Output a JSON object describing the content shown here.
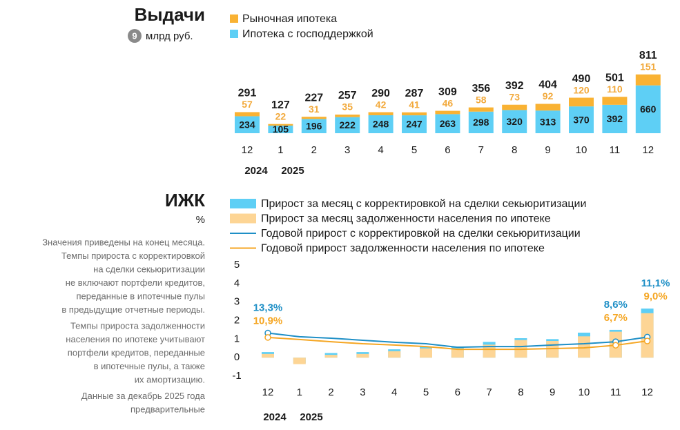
{
  "chart_data": [
    {
      "type": "stacked_bar",
      "title": "Выдачи",
      "footnote": "9",
      "unit": "млрд руб.",
      "categories": [
        "12",
        "1",
        "2",
        "3",
        "4",
        "5",
        "6",
        "7",
        "8",
        "9",
        "10",
        "11",
        "12"
      ],
      "years": [
        "2024",
        "2025"
      ],
      "series": [
        {
          "name": "Рыночная ипотека",
          "color": "#f9b233",
          "label_color": "#f2a93b",
          "values": [
            57,
            22,
            31,
            35,
            42,
            41,
            46,
            58,
            73,
            92,
            120,
            110,
            151
          ]
        },
        {
          "name": "Ипотека с господдержкой",
          "color": "#5ecff5",
          "label_color": "#1a1a1a",
          "values": [
            234,
            105,
            196,
            222,
            248,
            247,
            263,
            298,
            320,
            313,
            370,
            392,
            660
          ]
        }
      ],
      "totals": [
        291,
        127,
        227,
        257,
        290,
        287,
        309,
        356,
        392,
        404,
        490,
        501,
        811
      ]
    },
    {
      "type": "combo",
      "title": "ИЖК",
      "unit": "%",
      "notes": [
        [
          "Значения приведены на конец месяца.",
          "Темпы прироста с корректировкой",
          "на сделки секьюритизации",
          "не включают портфели кредитов,",
          "переданные в ипотечные пулы",
          "в предыдущие отчетные периоды."
        ],
        [
          "Темпы прироста задолженности",
          "населения по ипотеке учитывают",
          "портфели кредитов, переданные",
          "в ипотечные пулы, а также",
          "их амортизацию."
        ],
        [
          "Данные за декабрь 2025 года",
          "предварительные"
        ]
      ],
      "categories": [
        "12",
        "1",
        "2",
        "3",
        "4",
        "5",
        "6",
        "7",
        "8",
        "9",
        "10",
        "11",
        "12"
      ],
      "years": [
        "2024",
        "2025"
      ],
      "ylim": [
        -1,
        5
      ],
      "yticks": [
        -1,
        0,
        1,
        2,
        3,
        4,
        5
      ],
      "y2lim": [
        -10,
        50
      ],
      "series": [
        {
          "name": "Прирост за месяц с корректировкой на сделки секьюритизации",
          "kind": "bar",
          "color": "#5ecff5",
          "values": [
            0.3,
            -0.3,
            0.25,
            0.3,
            0.45,
            0.6,
            0.6,
            0.85,
            1.05,
            1.0,
            1.35,
            1.5,
            2.65
          ]
        },
        {
          "name": "Прирост за месяц задолженности населения по ипотеке",
          "kind": "bar",
          "color": "#fdd595",
          "values": [
            0.2,
            -0.35,
            0.15,
            0.2,
            0.35,
            0.5,
            0.5,
            0.7,
            0.95,
            0.9,
            1.15,
            1.4,
            2.4
          ]
        },
        {
          "name": "Годовой прирост с корректировкой на сделки секьюритизации",
          "kind": "line",
          "axis": "y2",
          "color": "#1e8fc6",
          "values": [
            13.3,
            11.3,
            10.5,
            9.4,
            8.3,
            7.5,
            5.6,
            6.0,
            6.0,
            6.8,
            7.5,
            8.6,
            11.1
          ],
          "value_labels": [
            "13,3%",
            null,
            null,
            null,
            null,
            null,
            null,
            null,
            null,
            null,
            null,
            "8,6%",
            "11,1%"
          ]
        },
        {
          "name": "Годовой прирост задолженности населения по ипотеке",
          "kind": "line",
          "axis": "y2",
          "color": "#f5a623",
          "values": [
            10.9,
            9.8,
            8.6,
            7.5,
            6.8,
            6.0,
            4.5,
            4.5,
            4.5,
            4.9,
            5.3,
            6.7,
            9.0
          ],
          "value_labels": [
            "10,9%",
            null,
            null,
            null,
            null,
            null,
            null,
            null,
            null,
            null,
            null,
            "6,7%",
            "9,0%"
          ]
        }
      ]
    }
  ]
}
